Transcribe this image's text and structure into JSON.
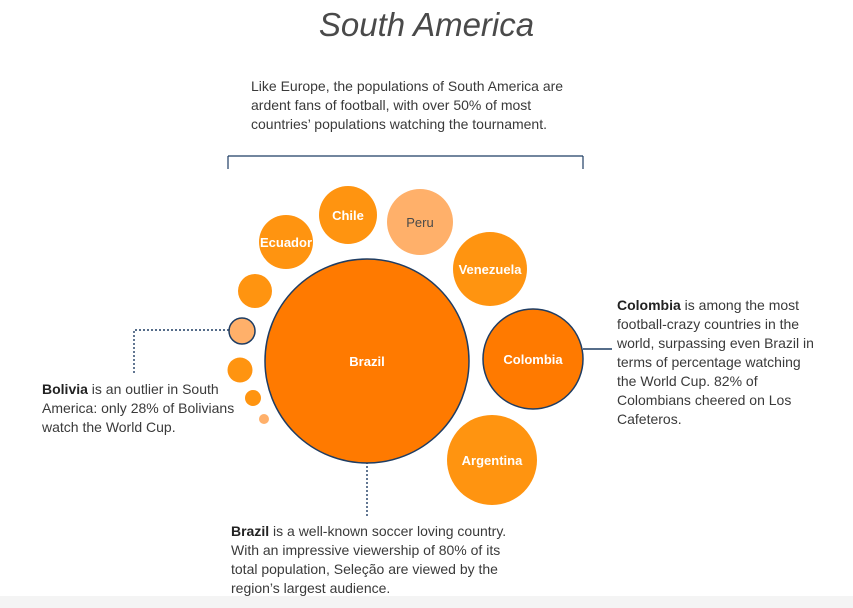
{
  "title": "South America",
  "intro": "Like Europe, the populations of South America are ardent fans of football, with over 50% of most countries’ populations watching the tournament.",
  "notes": {
    "colombia": {
      "bold": "Colombia",
      "text": " is among the most football-crazy countries in the world, surpassing even Brazil in terms of percentage watching the World Cup. 82% of Colombians cheered on Los Cafeteros."
    },
    "bolivia": {
      "bold": "Bolivia",
      "text": " is an outlier in South America: only 28% of Bolivians watch the World Cup."
    },
    "brazil": {
      "bold": "Brazil",
      "text": " is a well-known soccer loving country. With an impressive viewership of 80% of its total population, Seleção are viewed by the region’s largest audience."
    }
  },
  "colors": {
    "dark_orange": "#ff7a00",
    "orange": "#ff9410",
    "light_orange": "#ffb06a",
    "outline": "#1f3d63",
    "connector": "#1f3d63"
  },
  "chart_data": {
    "type": "bubble",
    "bubbles": [
      {
        "label": "Brazil",
        "size": 102,
        "color": "dark_orange",
        "outlined": true
      },
      {
        "label": "Colombia",
        "size": 50,
        "color": "dark_orange",
        "outlined": true
      },
      {
        "label": "Argentina",
        "size": 45,
        "color": "orange"
      },
      {
        "label": "Venezuela",
        "size": 37,
        "color": "orange"
      },
      {
        "label": "Peru",
        "size": 33,
        "color": "light_orange"
      },
      {
        "label": "Chile",
        "size": 29,
        "color": "orange"
      },
      {
        "label": "Ecuador",
        "size": 27,
        "color": "orange"
      },
      {
        "label": "",
        "size": 17,
        "color": "orange"
      },
      {
        "label": "",
        "size": 13,
        "color": "light_orange",
        "outlined": true
      },
      {
        "label": "",
        "size": 12.5,
        "color": "orange"
      },
      {
        "label": "",
        "size": 8,
        "color": "orange"
      },
      {
        "label": "",
        "size": 5,
        "color": "light_orange"
      }
    ]
  }
}
